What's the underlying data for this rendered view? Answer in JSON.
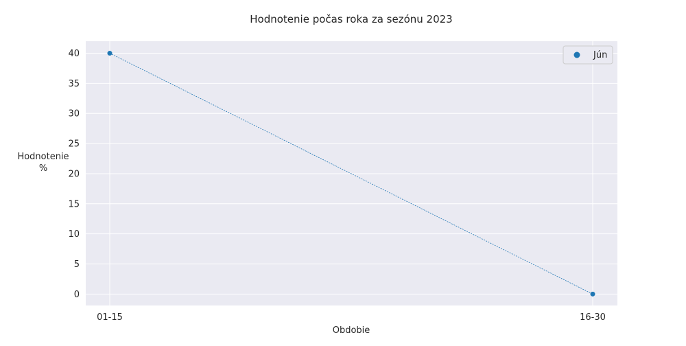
{
  "chart_data": {
    "type": "line",
    "title": "Hodnotenie počas roka za sezónu 2023",
    "xlabel": "Obdobie",
    "ylabel": [
      "Hodnotenie",
      "%"
    ],
    "categories": [
      "01-15",
      "16-30"
    ],
    "series": [
      {
        "name": "Jún",
        "values": [
          40,
          0
        ]
      }
    ],
    "ylim": [
      -1.9,
      42
    ],
    "yticks": [
      0,
      5,
      10,
      15,
      20,
      25,
      30,
      35,
      40
    ],
    "grid": true,
    "legend_position": "top-right",
    "line_style": "dashed",
    "colors": {
      "series": "#1f77b4",
      "plot_background": "#eaeaf2",
      "grid": "#ffffff",
      "text": "#262626"
    }
  }
}
